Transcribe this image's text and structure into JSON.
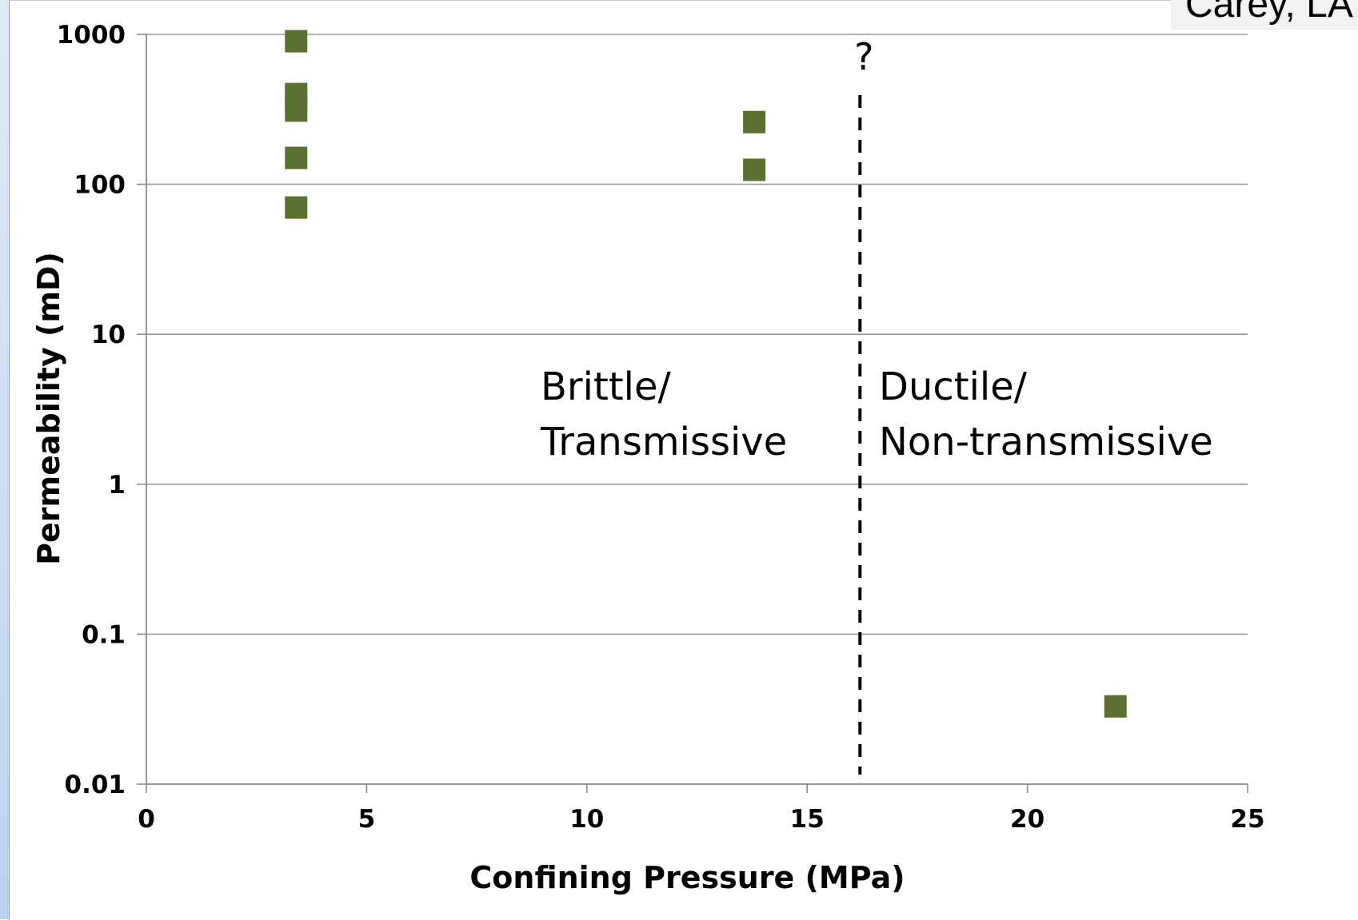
{
  "caption": "Carey, LA",
  "chart_data": {
    "type": "scatter",
    "title": "",
    "xlabel": "Confining Pressure (MPa)",
    "ylabel": "Permeability (mD)",
    "xlim": [
      0,
      25
    ],
    "ylim": [
      0.01,
      1000
    ],
    "yscale": "log",
    "x_ticks": [
      "0",
      "5",
      "10",
      "15",
      "20",
      "25"
    ],
    "y_ticks": [
      "0.01",
      "0.1",
      "1",
      "10",
      "100",
      "1000"
    ],
    "grid": "horizontal",
    "legend": "none",
    "marker": "square",
    "marker_color": "#5b7030",
    "points": [
      {
        "x": 3.4,
        "y": 900
      },
      {
        "x": 3.4,
        "y": 400
      },
      {
        "x": 3.4,
        "y": 360
      },
      {
        "x": 3.4,
        "y": 310
      },
      {
        "x": 3.4,
        "y": 150
      },
      {
        "x": 3.4,
        "y": 70
      },
      {
        "x": 13.8,
        "y": 260
      },
      {
        "x": 13.8,
        "y": 125
      },
      {
        "x": 22.0,
        "y": 0.033
      }
    ],
    "divider": {
      "x": 16.2,
      "style": "dashed",
      "label": "?"
    },
    "annotations": [
      {
        "lines": [
          "Brittle/",
          "Transmissive"
        ]
      },
      {
        "lines": [
          "Ductile/",
          "Non-transmissive"
        ]
      }
    ]
  }
}
